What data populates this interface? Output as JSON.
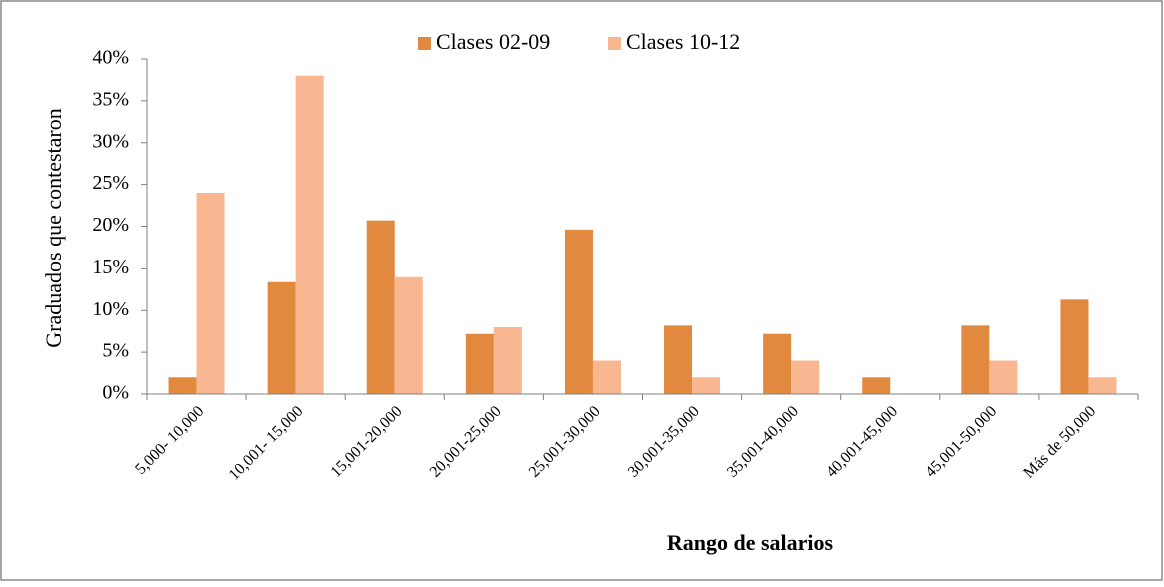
{
  "chart_data": {
    "type": "bar",
    "y_label": "Graduados que contestaron",
    "x_label": "Rango de salarios",
    "categories": [
      "5,000- 10,000",
      "10,001- 15,000",
      "15,001-20,000",
      "20,001-25,000",
      "25,001-30,000",
      "30,001-35,000",
      "35,001-40,000",
      "40,001-45,000",
      "45,001-50,000",
      "Más de 50,000"
    ],
    "series": [
      {
        "name": "Clases 02-09",
        "color": "#e0893f",
        "values": [
          2,
          13.4,
          20.7,
          7.2,
          19.6,
          8.2,
          7.2,
          2,
          8.2,
          11.3
        ]
      },
      {
        "name": "Clases 10-12",
        "color": "#f9b791",
        "values": [
          24,
          38,
          14,
          8,
          4,
          2,
          4,
          0,
          4,
          2
        ]
      }
    ],
    "ylim": [
      0,
      40
    ],
    "yticks": [
      {
        "value": 0,
        "label": "0%"
      },
      {
        "value": 5,
        "label": "5%"
      },
      {
        "value": 10,
        "label": "10%"
      },
      {
        "value": 15,
        "label": "15%"
      },
      {
        "value": 20,
        "label": "20%"
      },
      {
        "value": 25,
        "label": "25%"
      },
      {
        "value": 30,
        "label": "30%"
      },
      {
        "value": 35,
        "label": "35%"
      },
      {
        "value": 40,
        "label": "40%"
      }
    ],
    "legend": "top",
    "grid": false
  }
}
